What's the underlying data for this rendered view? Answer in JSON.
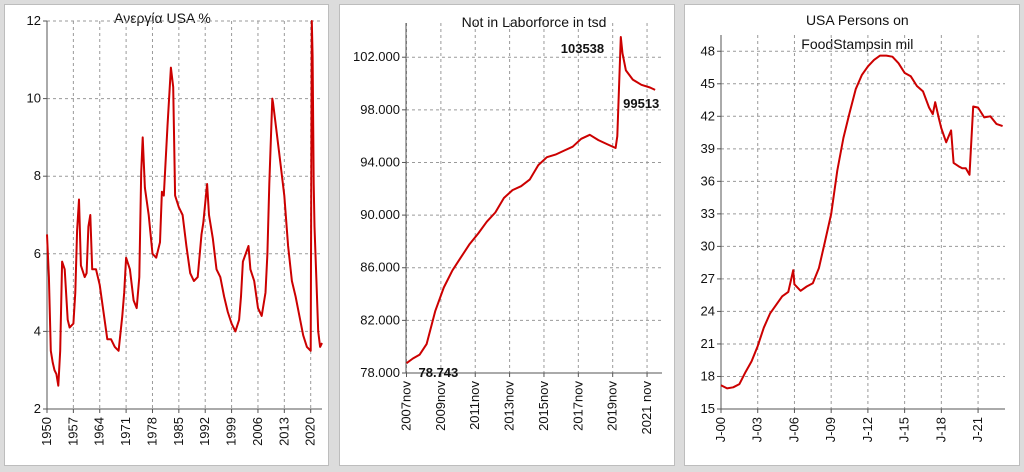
{
  "charts": [
    {
      "type": "line",
      "title": "Ανεργία USA %",
      "color": "#cc0000",
      "y_ticks": [
        2,
        4,
        6,
        8,
        10,
        12
      ],
      "ylim": [
        2,
        12
      ],
      "xlim": [
        1950,
        2023
      ],
      "x_ticks": [
        {
          "value": 1950,
          "label": "1950"
        },
        {
          "value": 1957,
          "label": "1957"
        },
        {
          "value": 1964,
          "label": "1964"
        },
        {
          "value": 1971,
          "label": "1971"
        },
        {
          "value": 1978,
          "label": "1978"
        },
        {
          "value": 1985,
          "label": "1985"
        },
        {
          "value": 1992,
          "label": "1992"
        },
        {
          "value": 1999,
          "label": "1999"
        },
        {
          "value": 2006,
          "label": "2006"
        },
        {
          "value": 2013,
          "label": "2013"
        },
        {
          "value": 2020,
          "label": "2020"
        }
      ],
      "x": [
        1950,
        1950.5,
        1951,
        1951.5,
        1952,
        1952.5,
        1953,
        1953.5,
        1954,
        1954.7,
        1955.5,
        1956,
        1957,
        1957.5,
        1958,
        1958.5,
        1959,
        1960,
        1960.5,
        1961,
        1961.5,
        1962,
        1963,
        1964,
        1965,
        1966,
        1967,
        1968,
        1969,
        1970,
        1970.5,
        1971,
        1972,
        1973,
        1973.8,
        1974.5,
        1975,
        1975.4,
        1976,
        1977,
        1978,
        1979,
        1980,
        1980.5,
        1981,
        1982,
        1982.9,
        1983.5,
        1984,
        1985,
        1986,
        1987,
        1988,
        1989,
        1990,
        1991,
        1991.5,
        1992.5,
        1993,
        1994,
        1995,
        1996,
        1997,
        1998,
        1999,
        2000,
        2001,
        2001.5,
        2002,
        2003.5,
        2004,
        2005,
        2006,
        2007,
        2008,
        2008.5,
        2009,
        2009.8,
        2010,
        2011,
        2012,
        2013,
        2014,
        2015,
        2016,
        2017,
        2018,
        2019,
        2020,
        2020.3,
        2020.5,
        2020.8,
        2021,
        2021.5,
        2022,
        2022.5,
        2023
      ],
      "values": [
        6.5,
        5.4,
        3.5,
        3.2,
        3.0,
        2.9,
        2.6,
        3.5,
        5.8,
        5.6,
        4.3,
        4.1,
        4.2,
        5.0,
        6.6,
        7.4,
        5.7,
        5.4,
        5.5,
        6.7,
        7.0,
        5.6,
        5.6,
        5.2,
        4.5,
        3.8,
        3.8,
        3.6,
        3.5,
        4.4,
        5.0,
        5.9,
        5.6,
        4.8,
        4.6,
        5.4,
        8.1,
        9.0,
        7.7,
        7.0,
        6.0,
        5.9,
        6.3,
        7.6,
        7.5,
        9.3,
        10.8,
        10.3,
        7.5,
        7.2,
        7.0,
        6.2,
        5.5,
        5.3,
        5.4,
        6.5,
        6.8,
        7.8,
        7.0,
        6.4,
        5.6,
        5.4,
        4.9,
        4.5,
        4.2,
        4.0,
        4.3,
        4.9,
        5.8,
        6.2,
        5.6,
        5.3,
        4.6,
        4.4,
        5.0,
        6.0,
        7.8,
        10.0,
        9.9,
        9.1,
        8.3,
        7.5,
        6.2,
        5.3,
        4.9,
        4.4,
        3.9,
        3.6,
        3.5,
        12.0,
        11.1,
        7.8,
        6.7,
        5.4,
        4.0,
        3.6,
        3.7
      ]
    },
    {
      "type": "line",
      "title": "Not in Laborforce in tsd",
      "color": "#cc0000",
      "y_ticks": [
        {
          "value": 78000,
          "label": "78.000"
        },
        {
          "value": 82000,
          "label": "82.000"
        },
        {
          "value": 86000,
          "label": "86.000"
        },
        {
          "value": 90000,
          "label": "90.000"
        },
        {
          "value": 94000,
          "label": "94.000"
        },
        {
          "value": 98000,
          "label": "98.000"
        },
        {
          "value": 102000,
          "label": "102.000"
        }
      ],
      "ylim": [
        78000,
        104600
      ],
      "xlim": [
        2007.8,
        2022.7
      ],
      "x_ticks": [
        {
          "value": 2007.83,
          "label": "2007nov"
        },
        {
          "value": 2009.83,
          "label": "2009nov"
        },
        {
          "value": 2011.83,
          "label": "2011nov"
        },
        {
          "value": 2013.83,
          "label": "2013nov"
        },
        {
          "value": 2015.83,
          "label": "2015nov"
        },
        {
          "value": 2017.83,
          "label": "2017nov"
        },
        {
          "value": 2019.83,
          "label": "2019nov"
        },
        {
          "value": 2021.83,
          "label": "2021 nov"
        }
      ],
      "x": [
        2007.83,
        2008.2,
        2008.6,
        2009,
        2009.5,
        2010,
        2010.5,
        2011,
        2011.5,
        2012,
        2012.5,
        2013,
        2013.5,
        2014,
        2014.5,
        2015,
        2015.5,
        2016,
        2016.5,
        2017,
        2017.5,
        2018,
        2018.5,
        2019,
        2019.5,
        2020,
        2020.1,
        2020.3,
        2020.4,
        2020.6,
        2021,
        2021.5,
        2022,
        2022.3
      ],
      "values": [
        78743,
        79100,
        79400,
        80200,
        82700,
        84500,
        85800,
        86800,
        87800,
        88600,
        89500,
        90200,
        91300,
        91900,
        92200,
        92700,
        93800,
        94400,
        94600,
        94900,
        95200,
        95800,
        96100,
        95700,
        95400,
        95100,
        96000,
        103538,
        102300,
        101000,
        100300,
        99900,
        99700,
        99513
      ],
      "annotations": [
        {
          "text": "103538",
          "x": 2020.3,
          "y": 103538,
          "dx": -60,
          "dy": 16
        },
        {
          "text": "99513",
          "x": 2022.3,
          "y": 99513,
          "dx": -32,
          "dy": 18
        },
        {
          "text": "78.743",
          "x": 2007.83,
          "y": 78743,
          "dx": 12,
          "dy": 14
        }
      ]
    },
    {
      "type": "line",
      "title": [
        "USA Persons on",
        "FoodStampsin mil"
      ],
      "color": "#cc0000",
      "y_ticks": [
        15,
        18,
        21,
        24,
        27,
        30,
        33,
        36,
        39,
        42,
        45,
        48
      ],
      "ylim": [
        15,
        49.5
      ],
      "xlim": [
        2000,
        2023.2
      ],
      "x_ticks": [
        {
          "value": 2000,
          "label": "J-00"
        },
        {
          "value": 2003,
          "label": "J-03"
        },
        {
          "value": 2006,
          "label": "J-06"
        },
        {
          "value": 2009,
          "label": "J-09"
        },
        {
          "value": 2012,
          "label": "J-12"
        },
        {
          "value": 2015,
          "label": "J-15"
        },
        {
          "value": 2018,
          "label": "J-18"
        },
        {
          "value": 2021,
          "label": "J-21"
        }
      ],
      "x": [
        2000,
        2000.5,
        2001,
        2001.5,
        2002,
        2002.5,
        2003,
        2003.5,
        2004,
        2004.5,
        2005,
        2005.5,
        2005.9,
        2006,
        2006.5,
        2007,
        2007.5,
        2008,
        2008.5,
        2009,
        2009.5,
        2010,
        2010.5,
        2011,
        2011.5,
        2012,
        2012.5,
        2013,
        2013.5,
        2014,
        2014.5,
        2015,
        2015.5,
        2016,
        2016.5,
        2017,
        2017.3,
        2017.5,
        2017.8,
        2018,
        2018.4,
        2018.8,
        2019,
        2019.4,
        2019.7,
        2020,
        2020.3,
        2020.6,
        2021,
        2021.5,
        2022,
        2022.5,
        2023
      ],
      "values": [
        17.2,
        16.9,
        17.0,
        17.3,
        18.4,
        19.4,
        20.8,
        22.5,
        23.8,
        24.6,
        25.4,
        25.8,
        27.8,
        26.5,
        25.9,
        26.3,
        26.6,
        28.0,
        30.5,
        33.0,
        37.0,
        40.0,
        42.3,
        44.5,
        45.8,
        46.6,
        47.2,
        47.6,
        47.6,
        47.5,
        46.9,
        46.0,
        45.7,
        44.8,
        44.3,
        42.8,
        42.2,
        43.3,
        41.8,
        40.9,
        39.6,
        40.7,
        37.7,
        37.4,
        37.2,
        37.2,
        36.6,
        42.9,
        42.8,
        41.9,
        42.0,
        41.3,
        41.1
      ]
    }
  ]
}
